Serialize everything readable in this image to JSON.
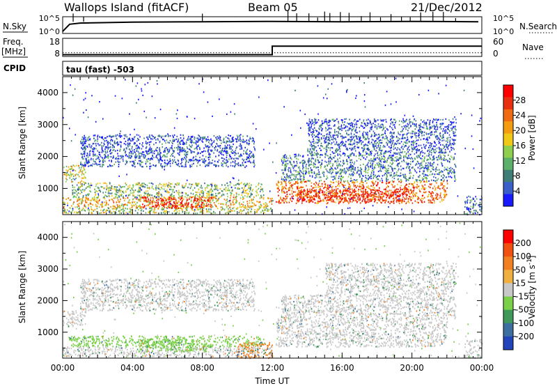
{
  "header": {
    "station": "Wallops Island (fitACF)",
    "beam": "Beam 05",
    "date": "21/Dec/2012"
  },
  "noise_panel": {
    "left_label": "N.Sky",
    "right_label": "N.Search",
    "left_ticks": [
      "10^5",
      "10^0"
    ],
    "right_ticks": [
      "10^5",
      "10^0"
    ],
    "noise_profile": [
      [
        0,
        0.12
      ],
      [
        0.4,
        0.55
      ],
      [
        1,
        0.62
      ],
      [
        4,
        0.68
      ],
      [
        8,
        0.7
      ],
      [
        12,
        0.72
      ],
      [
        16,
        0.7
      ],
      [
        20,
        0.72
      ],
      [
        23.8,
        0.7
      ]
    ],
    "spike_hours": [
      0.6,
      1.2,
      8.0,
      12.9,
      13.4,
      14.1,
      14.6,
      15.0,
      15.3,
      15.9,
      16.4,
      17.1,
      17.6,
      18.2,
      18.8,
      19.4,
      19.9,
      20.5,
      21.2,
      21.8,
      22.5
    ]
  },
  "freq_panel": {
    "left_label_top": "Freq.",
    "left_label_unit": "[MHz]",
    "right_label": "Nave",
    "left_ticks": [
      "18",
      "8"
    ],
    "right_ticks": [
      "60",
      "0"
    ],
    "freq_steps": [
      [
        0,
        10.5
      ],
      [
        12,
        10.5
      ],
      [
        12,
        15.2
      ],
      [
        24,
        15.2
      ]
    ],
    "nave": 12
  },
  "cpid": {
    "label": "CPID",
    "value": "tau (fast) -503"
  },
  "chart_data": [
    {
      "type": "heatmap",
      "name": "power",
      "xlabel": "",
      "ylabel": "Slant Range [km]",
      "xlim": [
        0,
        24
      ],
      "ylim": [
        180,
        4500
      ],
      "yticks": [
        1000,
        2000,
        3000,
        4000
      ],
      "colorbar_label": "Power [dB]",
      "colorbar_ticks": [
        "4",
        "8",
        "12",
        "16",
        "20",
        "24",
        "28"
      ],
      "colorbar_colors": [
        "#1a1aff",
        "#3a5fc8",
        "#3f7e78",
        "#5cb06a",
        "#8ed04e",
        "#f0c818",
        "#f39c12",
        "#f06a12",
        "#e83010",
        "#ff0000"
      ],
      "bands": [
        {
          "x": [
            0,
            12
          ],
          "y": [
            240,
            420
          ],
          "level": 0.45
        },
        {
          "x": [
            0,
            12
          ],
          "y": [
            420,
            750
          ],
          "level": 0.6
        },
        {
          "x": [
            0.5,
            11.5
          ],
          "y": [
            750,
            1200
          ],
          "level": 0.4
        },
        {
          "x": [
            4.5,
            8.5
          ],
          "y": [
            400,
            750
          ],
          "level": 0.9
        },
        {
          "x": [
            0,
            1.3
          ],
          "y": [
            1200,
            1750
          ],
          "level": 0.55
        },
        {
          "x": [
            1,
            11
          ],
          "y": [
            1700,
            2700
          ],
          "level": 0.15
        },
        {
          "x": [
            12.2,
            22
          ],
          "y": [
            550,
            1250
          ],
          "level": 0.75
        },
        {
          "x": [
            13.5,
            20
          ],
          "y": [
            600,
            1000
          ],
          "level": 0.9
        },
        {
          "x": [
            12.5,
            22.5
          ],
          "y": [
            1250,
            2100
          ],
          "level": 0.25
        },
        {
          "x": [
            14,
            22.5
          ],
          "y": [
            2100,
            3200
          ],
          "level": 0.15
        },
        {
          "x": [
            23,
            24
          ],
          "y": [
            200,
            800
          ],
          "level": 0.2
        }
      ]
    },
    {
      "type": "heatmap",
      "name": "velocity",
      "xlabel": "Time UT",
      "ylabel": "Slant Range [km]",
      "xlim": [
        0,
        24
      ],
      "ylim": [
        180,
        4500
      ],
      "xticks": [
        "00:00",
        "04:00",
        "08:00",
        "12:00",
        "16:00",
        "20:00",
        "00:00"
      ],
      "yticks": [
        1000,
        2000,
        3000,
        4000
      ],
      "colorbar_label": "Velocity [m s^-1]",
      "colorbar_ticks": [
        "200",
        "100",
        "50",
        "15",
        "-15",
        "-50",
        "-100",
        "-200"
      ],
      "colorbar_colors": [
        "#2244bb",
        "#3c6fa0",
        "#3f9a5a",
        "#7ad048",
        "#c8c8c8",
        "#f0b040",
        "#f38020",
        "#f05010",
        "#ff0000"
      ],
      "bands": [
        {
          "x": [
            0,
            12
          ],
          "y": [
            250,
            560
          ],
          "level": "gray"
        },
        {
          "x": [
            0.3,
            11.5
          ],
          "y": [
            560,
            900
          ],
          "level": "green"
        },
        {
          "x": [
            4.3,
            8.5
          ],
          "y": [
            400,
            800
          ],
          "level": "green"
        },
        {
          "x": [
            0,
            1.3
          ],
          "y": [
            1200,
            1700
          ],
          "level": "gray"
        },
        {
          "x": [
            1,
            11
          ],
          "y": [
            1700,
            2700
          ],
          "level": "gray"
        },
        {
          "x": [
            10,
            12
          ],
          "y": [
            200,
            700
          ],
          "level": "orange"
        },
        {
          "x": [
            12.2,
            22
          ],
          "y": [
            550,
            1450
          ],
          "level": "gray"
        },
        {
          "x": [
            12.5,
            22.5
          ],
          "y": [
            1450,
            2200
          ],
          "level": "gray"
        },
        {
          "x": [
            15,
            22.5
          ],
          "y": [
            2200,
            3200
          ],
          "level": "gray"
        },
        {
          "x": [
            23,
            24
          ],
          "y": [
            200,
            800
          ],
          "level": "gray"
        }
      ]
    }
  ]
}
